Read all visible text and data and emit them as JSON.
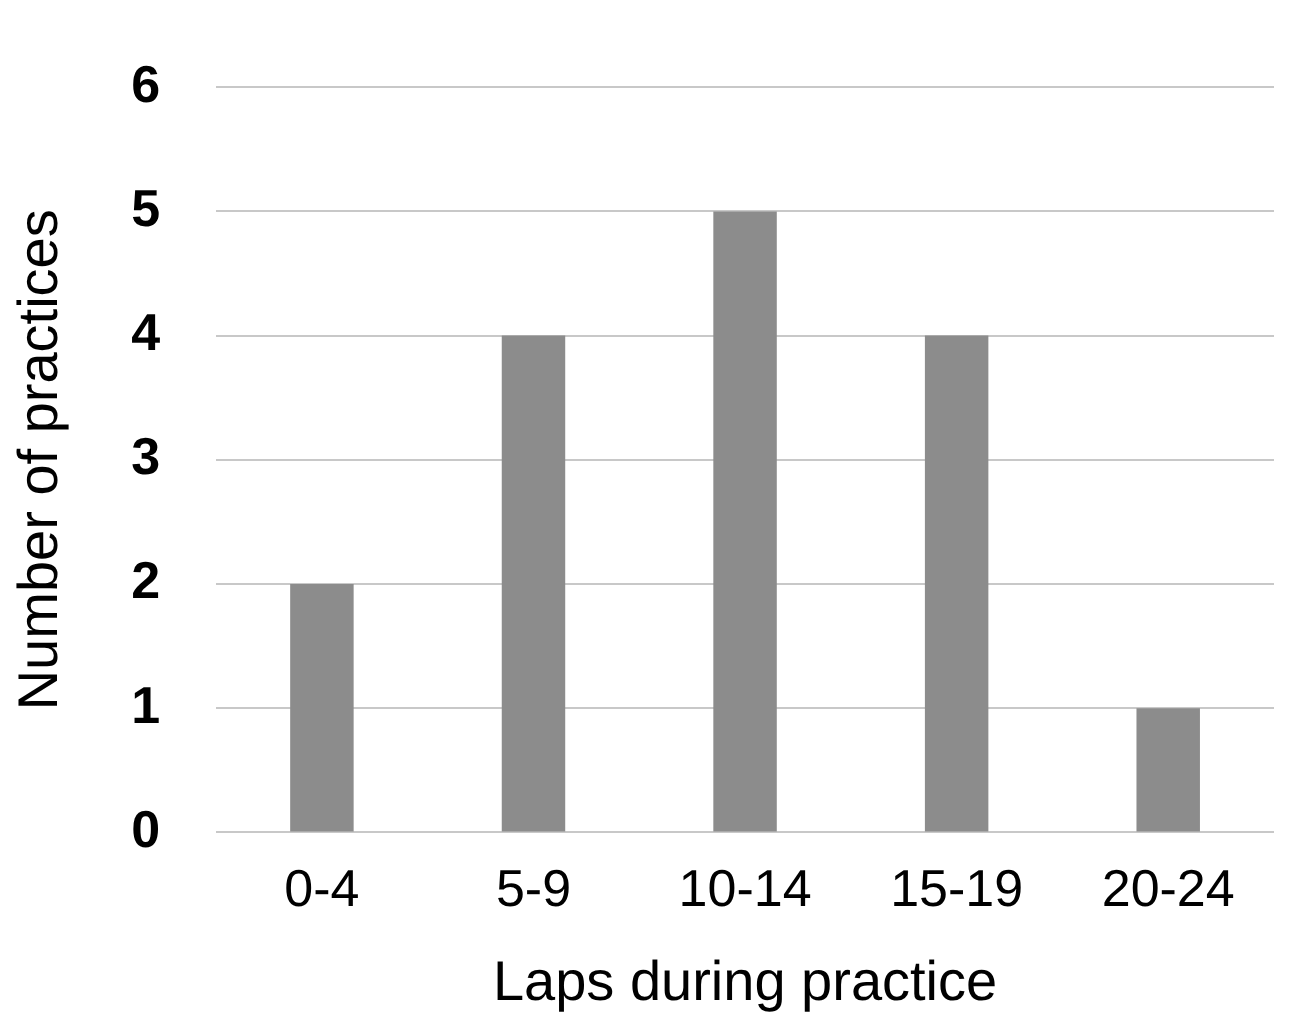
{
  "chart_data": {
    "type": "bar",
    "xlabel": "Laps during practice",
    "ylabel": "Number of practices",
    "categories": [
      "0-4",
      "5-9",
      "10-14",
      "15-19",
      "20-24"
    ],
    "values": [
      2,
      4,
      5,
      4,
      1
    ],
    "color": "#8c8c8c",
    "ylim": [
      0,
      6
    ],
    "yticks": [
      0,
      1,
      2,
      3,
      4,
      5,
      6
    ],
    "grid": "y",
    "legend": false
  }
}
